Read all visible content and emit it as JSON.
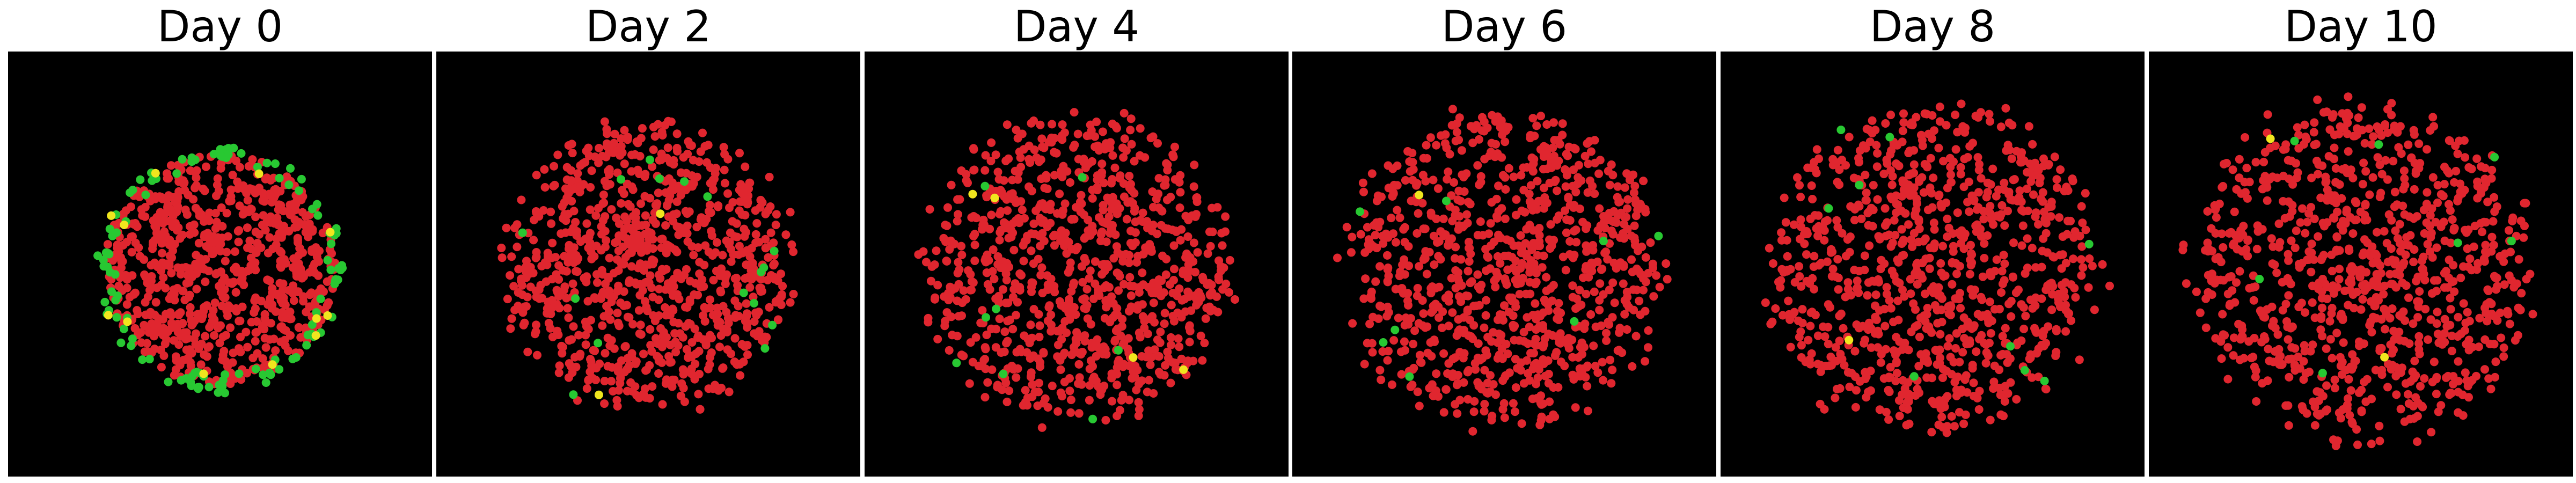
{
  "figure": {
    "background": "#ffffff",
    "plot_background": "#000000",
    "colors": {
      "red": "#e0262f",
      "green": "#28c832",
      "yellow": "#f0e61e"
    },
    "panels": [
      {
        "title": "Day 0",
        "seed": 11,
        "cloud_radius": 0.58,
        "red_count": 760,
        "green_count": 120,
        "yellow_count": 12,
        "green_ring": true
      },
      {
        "title": "Day 2",
        "seed": 23,
        "cloud_radius": 0.68,
        "red_count": 900,
        "green_count": 16,
        "yellow_count": 2,
        "green_ring": false
      },
      {
        "title": "Day 4",
        "seed": 37,
        "cloud_radius": 0.72,
        "red_count": 900,
        "green_count": 8,
        "yellow_count": 4,
        "green_ring": false
      },
      {
        "title": "Day 6",
        "seed": 41,
        "cloud_radius": 0.74,
        "red_count": 900,
        "green_count": 8,
        "yellow_count": 1,
        "green_ring": false
      },
      {
        "title": "Day 8",
        "seed": 53,
        "cloud_radius": 0.78,
        "red_count": 900,
        "green_count": 9,
        "yellow_count": 1,
        "green_ring": false
      },
      {
        "title": "Day 10",
        "seed": 67,
        "cloud_radius": 0.8,
        "red_count": 900,
        "green_count": 7,
        "yellow_count": 2,
        "green_ring": false
      }
    ]
  }
}
